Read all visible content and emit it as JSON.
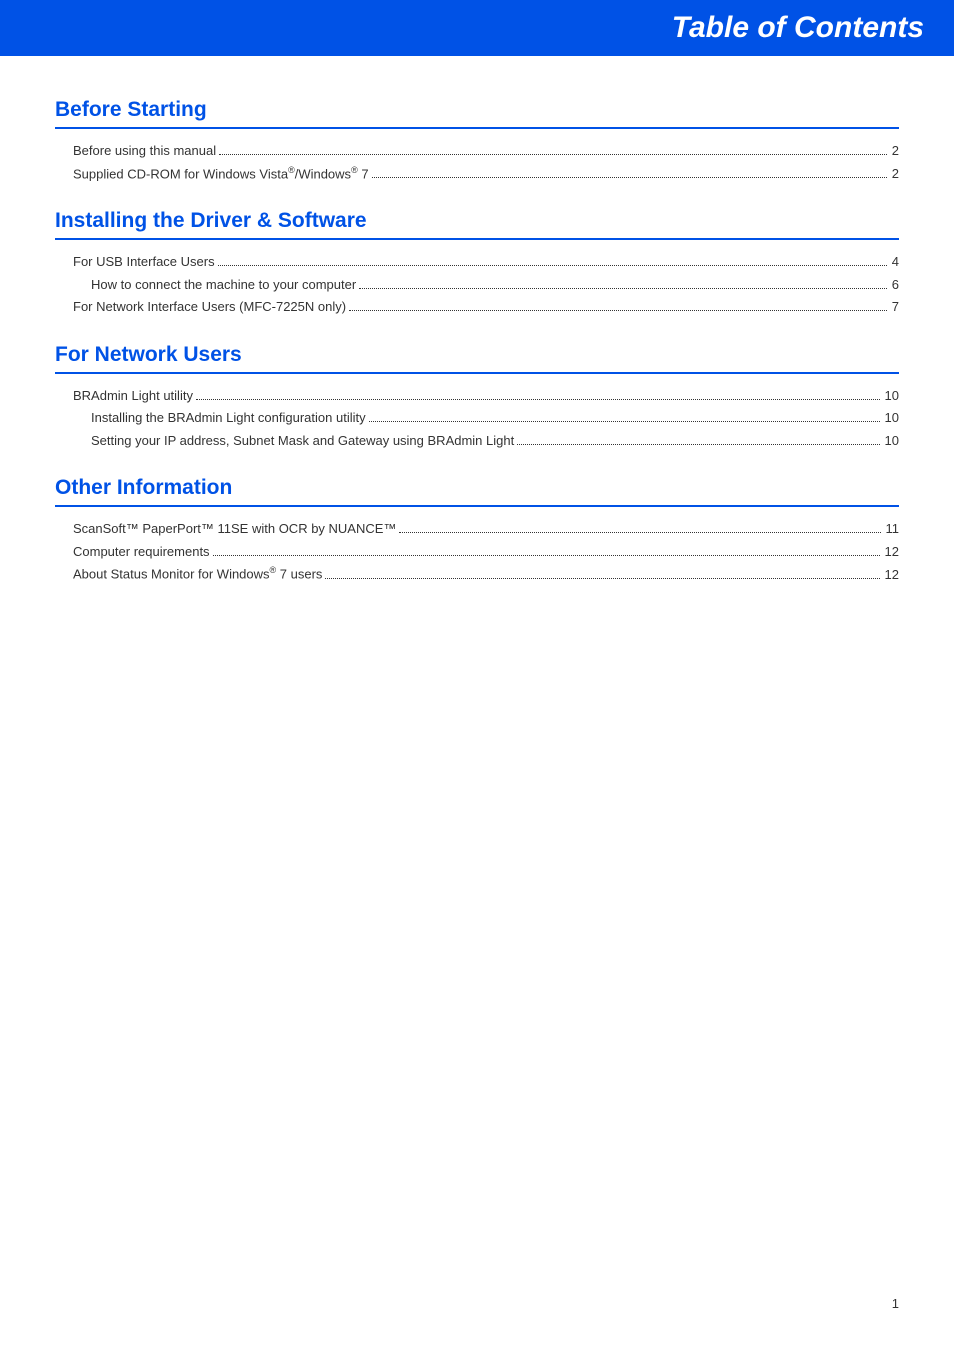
{
  "header": {
    "title": "Table of Contents",
    "bg_color": "#0052e6",
    "text_color": "#ffffff"
  },
  "sections": [
    {
      "title": "Before Starting",
      "entries": [
        {
          "level": 1,
          "label": "Before using this manual",
          "page": "2"
        },
        {
          "level": 1,
          "label_html": "Supplied CD-ROM for Windows Vista<sup>®</sup>/Windows<sup>®</sup> 7",
          "page": "2"
        }
      ]
    },
    {
      "title": "Installing the Driver & Software",
      "entries": [
        {
          "level": 1,
          "label": "For USB Interface Users",
          "page": " 4"
        },
        {
          "level": 2,
          "label": "How to connect the machine to your computer",
          "page": "6"
        },
        {
          "level": 1,
          "label": "For Network Interface Users (MFC-7225N only)",
          "page": " 7"
        }
      ]
    },
    {
      "title": "For Network Users",
      "entries": [
        {
          "level": 1,
          "label": "BRAdmin Light utility",
          "page": "10"
        },
        {
          "level": 2,
          "label": "Installing the BRAdmin Light configuration utility",
          "page": "10"
        },
        {
          "level": 2,
          "label": "Setting your IP address, Subnet Mask and Gateway using BRAdmin Light",
          "page": "10"
        }
      ]
    },
    {
      "title": "Other Information",
      "entries": [
        {
          "level": 1,
          "label": "ScanSoft™ PaperPort™ 11SE with OCR by NUANCE™",
          "page": "11"
        },
        {
          "level": 1,
          "label": "Computer requirements",
          "page": "12"
        },
        {
          "level": 1,
          "label_html": "About Status Monitor for Windows<sup>®</sup> 7 users",
          "page": "12"
        }
      ]
    }
  ],
  "page_number": "1",
  "colors": {
    "section_title": "#0052e6",
    "text": "#333333",
    "background": "#ffffff"
  }
}
